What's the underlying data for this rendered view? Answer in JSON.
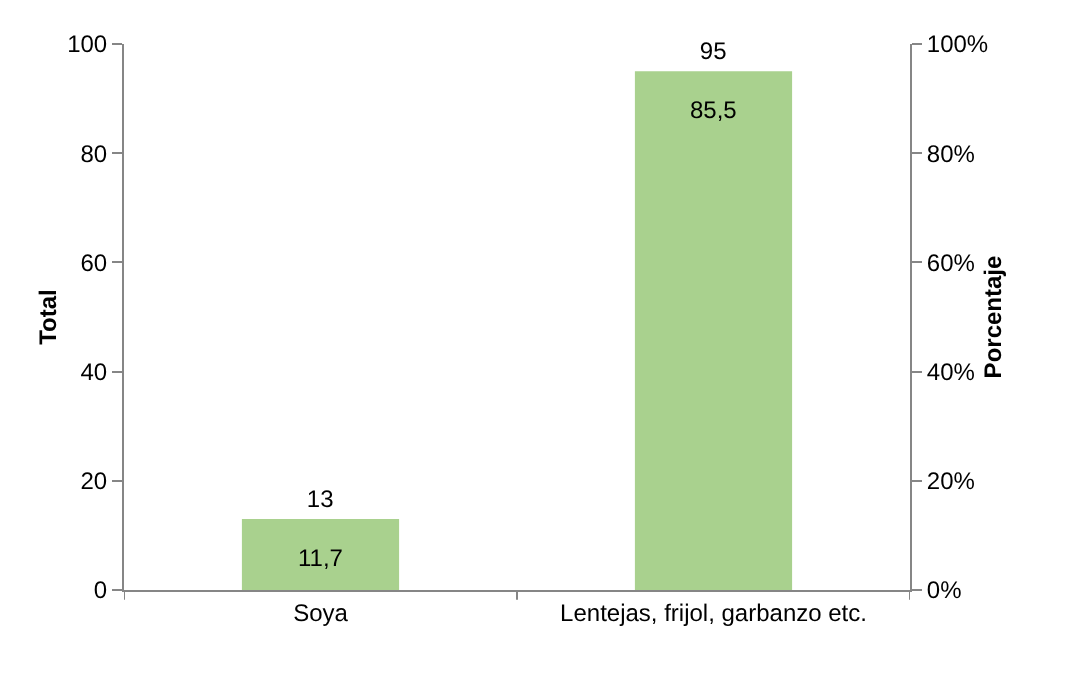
{
  "chart_data": {
    "type": "bar",
    "categories": [
      "Soya",
      "Lentejas, frijol, garbanzo etc."
    ],
    "values": [
      13,
      95
    ],
    "color": "#a9d18e",
    "data_labels": true,
    "ylabel": "Total",
    "y2label": "Porcentaje",
    "ylim": [
      0,
      100
    ],
    "yticks": [
      0,
      20,
      40,
      60,
      80,
      100
    ],
    "y2lim": [
      0,
      100
    ],
    "y2ticks": [
      {
        "value": 0,
        "label": "0%"
      },
      {
        "value": 20,
        "label": "20%"
      },
      {
        "value": 40,
        "label": "40%"
      },
      {
        "value": 60,
        "label": "60%"
      },
      {
        "value": 80,
        "label": "80%"
      },
      {
        "value": 100,
        "label": "100%"
      }
    ],
    "annotations": [
      "11,7",
      "85,5"
    ],
    "grid": false,
    "legend": false
  }
}
